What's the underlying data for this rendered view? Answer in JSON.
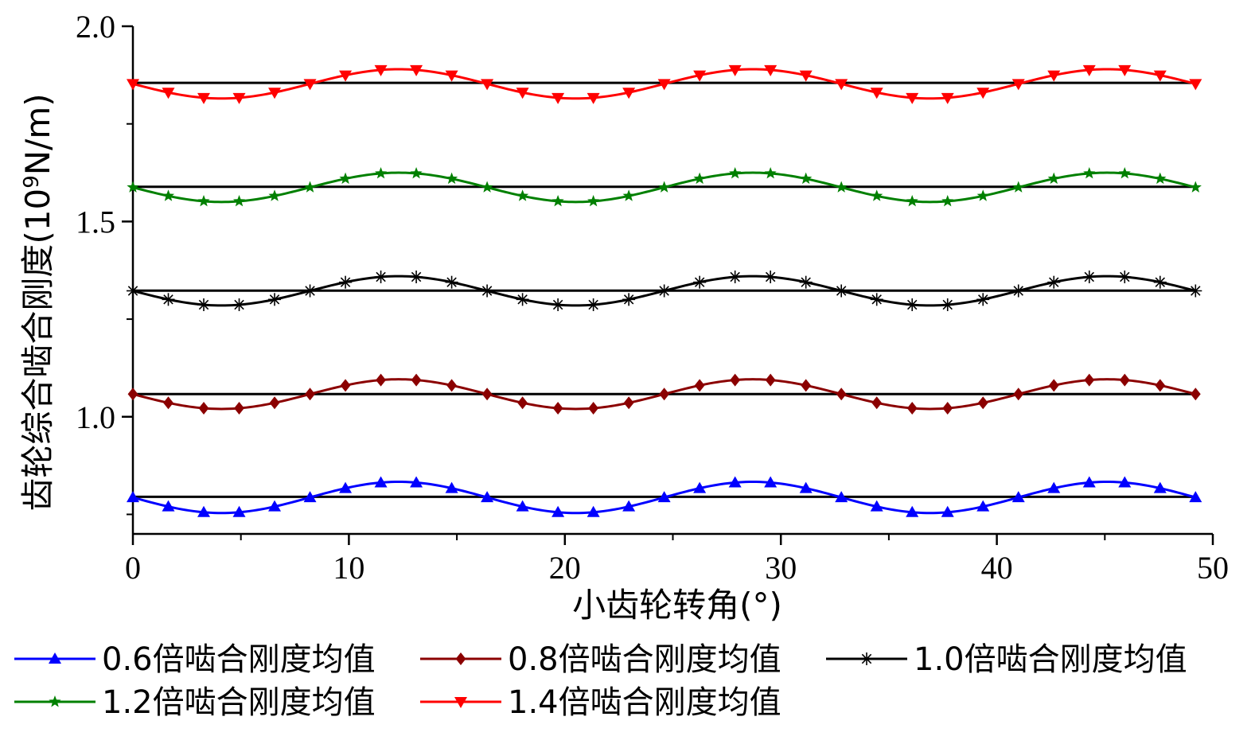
{
  "chart_data": {
    "type": "line",
    "xlabel": "小齿轮转角(°)",
    "ylabel_main": "齿轮综合啮合刚度(10",
    "ylabel_sup": "9",
    "ylabel_end": "N/m)",
    "xlim": [
      0,
      50
    ],
    "ylim": [
      0.7,
      2.0
    ],
    "xticks": [
      0,
      10,
      20,
      30,
      40,
      50
    ],
    "xtick_labels": [
      "0",
      "10",
      "20",
      "30",
      "40",
      "50"
    ],
    "yticks": [
      1.0,
      1.5,
      2.0
    ],
    "ytick_labels": [
      "1.0",
      "1.5",
      "2.0"
    ],
    "grid": false,
    "legend_position": "bottom",
    "period": 16.4,
    "x": [
      0,
      1.64,
      3.28,
      4.92,
      6.56,
      8.2,
      9.84,
      11.48,
      13.12,
      14.76,
      16.4,
      18.04,
      19.68,
      21.32,
      22.96,
      24.6,
      26.24,
      27.88,
      29.52,
      31.16,
      32.8,
      34.44,
      36.08,
      37.72,
      39.36,
      41.0,
      42.64,
      44.28,
      45.92,
      47.56,
      49.2
    ],
    "series": [
      {
        "name": "0.6倍啮合刚度均值",
        "mean": 0.7935,
        "amplitude": 0.04,
        "line_mean": 0.795,
        "color": "#0000ff",
        "marker": "triangle-up"
      },
      {
        "name": "0.8倍啮合刚度均值",
        "mean": 1.058,
        "amplitude": 0.038,
        "line_mean": 1.058,
        "color": "#8b0000",
        "marker": "diamond"
      },
      {
        "name": "1.0倍啮合刚度均值",
        "mean": 1.3225,
        "amplitude": 0.0375,
        "line_mean": 1.323,
        "color": "#000000",
        "marker": "asterisk"
      },
      {
        "name": "1.2倍啮合刚度均值",
        "mean": 1.5875,
        "amplitude": 0.0375,
        "line_mean": 1.589,
        "color": "#008000",
        "marker": "star"
      },
      {
        "name": "1.4倍啮合刚度均值",
        "mean": 1.8525,
        "amplitude": 0.0375,
        "line_mean": 1.855,
        "color": "#ff0000",
        "marker": "triangle-down"
      }
    ]
  }
}
